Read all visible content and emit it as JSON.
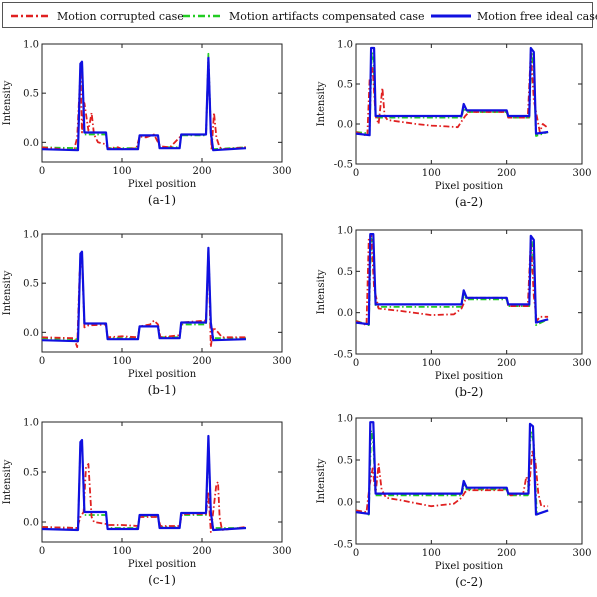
{
  "legend": {
    "corrupted": "Motion corrupted case",
    "compensated": "Motion artifacts compensated case",
    "ideal": "Motion free ideal case"
  },
  "colors": {
    "corrupted": "#e02020",
    "compensated": "#22cc22",
    "ideal": "#1010e0"
  },
  "chart_data": [
    {
      "id": "a-1",
      "type": "line",
      "subtitle": "(a-1)",
      "xlabel": "Pixel position",
      "ylabel": "Intensity",
      "xlim": [
        0,
        300
      ],
      "ylim": [
        -0.2,
        1.0
      ],
      "xticks": [
        0,
        100,
        200,
        300
      ],
      "yticks": [
        -0.0,
        0.5,
        1.0
      ],
      "ytick_labels": [
        "0.0",
        "0.5",
        "1.0"
      ],
      "series": [
        {
          "name": "Motion corrupted case",
          "style": "dashdot",
          "color": "#e02020",
          "x": [
            0,
            40,
            44,
            48,
            50,
            53,
            58,
            62,
            65,
            70,
            80,
            82,
            95,
            100,
            118,
            122,
            130,
            140,
            145,
            148,
            160,
            172,
            175,
            205,
            208,
            212,
            215,
            218,
            222,
            226,
            255
          ],
          "y": [
            -0.05,
            -0.08,
            0.05,
            0.72,
            0.1,
            0.4,
            0.12,
            0.3,
            0.08,
            0.0,
            -0.02,
            -0.06,
            -0.05,
            -0.07,
            -0.06,
            0.06,
            0.05,
            0.08,
            0.0,
            -0.04,
            -0.05,
            0.05,
            0.08,
            0.08,
            0.82,
            -0.08,
            0.3,
            0.05,
            -0.05,
            -0.07,
            -0.05
          ]
        },
        {
          "name": "Motion artifacts compensated case",
          "style": "dashdot",
          "color": "#22cc22",
          "x": [
            0,
            45,
            48,
            50,
            53,
            80,
            82,
            120,
            122,
            145,
            147,
            172,
            174,
            205,
            208,
            211,
            214,
            255
          ],
          "y": [
            -0.05,
            -0.06,
            0.75,
            0.82,
            0.08,
            0.08,
            -0.06,
            -0.06,
            0.07,
            0.07,
            -0.05,
            -0.05,
            0.07,
            0.07,
            0.9,
            0.12,
            -0.07,
            -0.05
          ]
        },
        {
          "name": "Motion free ideal case",
          "style": "solid",
          "color": "#1010e0",
          "x": [
            0,
            45,
            48,
            50,
            53,
            80,
            82,
            120,
            122,
            145,
            147,
            172,
            174,
            205,
            208,
            211,
            214,
            255
          ],
          "y": [
            -0.07,
            -0.08,
            0.8,
            0.82,
            0.1,
            0.1,
            -0.07,
            -0.07,
            0.07,
            0.07,
            -0.06,
            -0.06,
            0.08,
            0.08,
            0.86,
            0.1,
            -0.08,
            -0.06
          ]
        }
      ]
    },
    {
      "id": "a-2",
      "type": "line",
      "subtitle": "(a-2)",
      "xlabel": "Pixel position",
      "ylabel": "Intensity",
      "xlim": [
        0,
        300
      ],
      "ylim": [
        -0.5,
        1.0
      ],
      "xticks": [
        0,
        100,
        200,
        300
      ],
      "yticks": [
        -0.5,
        0.0,
        0.5,
        1.0
      ],
      "ytick_labels": [
        "-0.5",
        "0.0",
        "0.5",
        "1.0"
      ],
      "series": [
        {
          "name": "Motion corrupted case",
          "style": "dashdot",
          "color": "#e02020",
          "x": [
            0,
            15,
            18,
            22,
            26,
            30,
            35,
            38,
            42,
            80,
            100,
            120,
            135,
            145,
            150,
            200,
            202,
            228,
            232,
            236,
            240,
            244,
            248,
            255
          ],
          "y": [
            -0.1,
            -0.15,
            0.55,
            0.7,
            0.1,
            0.0,
            0.45,
            0.1,
            0.05,
            0.0,
            -0.02,
            -0.03,
            -0.04,
            0.1,
            0.15,
            0.15,
            0.08,
            0.08,
            0.9,
            0.3,
            0.1,
            -0.1,
            0.0,
            -0.05
          ]
        },
        {
          "name": "Motion artifacts compensated case",
          "style": "dashdot",
          "color": "#22cc22",
          "x": [
            0,
            18,
            21,
            23,
            26,
            140,
            143,
            147,
            200,
            202,
            230,
            233,
            236,
            239,
            255
          ],
          "y": [
            -0.1,
            -0.12,
            0.9,
            0.85,
            0.08,
            0.08,
            0.2,
            0.15,
            0.15,
            0.08,
            0.08,
            0.9,
            0.7,
            -0.15,
            -0.1
          ]
        },
        {
          "name": "Motion free ideal case",
          "style": "solid",
          "color": "#1010e0",
          "x": [
            0,
            18,
            20,
            24,
            26,
            140,
            143,
            147,
            200,
            202,
            230,
            232,
            236,
            239,
            255
          ],
          "y": [
            -0.12,
            -0.14,
            0.95,
            0.95,
            0.1,
            0.1,
            0.25,
            0.17,
            0.17,
            0.1,
            0.1,
            0.95,
            0.9,
            -0.12,
            -0.1
          ]
        }
      ]
    },
    {
      "id": "b-1",
      "type": "line",
      "subtitle": "(b-1)",
      "xlabel": "Pixel position",
      "ylabel": "Intensity",
      "xlim": [
        0,
        300
      ],
      "ylim": [
        -0.2,
        1.0
      ],
      "xticks": [
        0,
        100,
        200,
        300
      ],
      "yticks": [
        0.0,
        0.5,
        1.0
      ],
      "ytick_labels": [
        "0.0",
        "0.5",
        "1.0"
      ],
      "series": [
        {
          "name": "Motion corrupted case",
          "style": "dashdot",
          "color": "#e02020",
          "x": [
            0,
            40,
            44,
            47,
            50,
            53,
            58,
            80,
            82,
            100,
            120,
            122,
            135,
            140,
            145,
            148,
            172,
            175,
            205,
            208,
            211,
            214,
            220,
            225,
            255
          ],
          "y": [
            -0.05,
            -0.06,
            -0.15,
            0.6,
            0.78,
            0.05,
            0.07,
            0.08,
            -0.05,
            -0.04,
            -0.05,
            0.06,
            0.08,
            0.12,
            0.08,
            -0.05,
            -0.03,
            0.1,
            0.12,
            0.82,
            -0.15,
            0.05,
            0.0,
            -0.05,
            -0.05
          ]
        },
        {
          "name": "Motion artifacts compensated case",
          "style": "dashdot",
          "color": "#22cc22",
          "x": [
            0,
            45,
            48,
            50,
            53,
            80,
            82,
            120,
            122,
            145,
            147,
            172,
            174,
            205,
            208,
            211,
            214,
            255
          ],
          "y": [
            -0.06,
            -0.07,
            0.78,
            0.8,
            0.08,
            0.08,
            -0.06,
            -0.06,
            0.06,
            0.06,
            -0.05,
            -0.05,
            0.08,
            0.08,
            0.85,
            0.1,
            -0.06,
            -0.06
          ]
        },
        {
          "name": "Motion free ideal case",
          "style": "solid",
          "color": "#1010e0",
          "x": [
            0,
            45,
            48,
            50,
            53,
            80,
            82,
            120,
            122,
            145,
            147,
            172,
            174,
            205,
            208,
            211,
            214,
            255
          ],
          "y": [
            -0.08,
            -0.09,
            0.8,
            0.82,
            0.09,
            0.09,
            -0.07,
            -0.07,
            0.06,
            0.06,
            -0.06,
            -0.06,
            0.1,
            0.1,
            0.86,
            0.1,
            -0.08,
            -0.07
          ]
        }
      ]
    },
    {
      "id": "b-2",
      "type": "line",
      "subtitle": "(b-2)",
      "xlabel": "Pixel position",
      "ylabel": "Intensity",
      "xlim": [
        0,
        300
      ],
      "ylim": [
        -0.5,
        1.0
      ],
      "xticks": [
        0,
        100,
        200,
        300
      ],
      "yticks": [
        -0.5,
        0.0,
        0.5,
        1.0
      ],
      "ytick_labels": [
        "-0.5",
        "0.0",
        "0.5",
        "1.0"
      ],
      "series": [
        {
          "name": "Motion corrupted case",
          "style": "dashdot",
          "color": "#e02020",
          "x": [
            0,
            14,
            17,
            20,
            24,
            30,
            60,
            100,
            130,
            140,
            145,
            150,
            200,
            202,
            228,
            232,
            236,
            240,
            244,
            255
          ],
          "y": [
            -0.1,
            -0.15,
            0.9,
            0.95,
            0.3,
            0.05,
            0.02,
            -0.03,
            -0.02,
            0.05,
            0.15,
            0.18,
            0.18,
            0.08,
            0.08,
            0.88,
            0.2,
            -0.1,
            -0.05,
            -0.05
          ]
        },
        {
          "name": "Motion artifacts compensated case",
          "style": "dashdot",
          "color": "#22cc22",
          "x": [
            0,
            17,
            20,
            23,
            26,
            140,
            143,
            147,
            200,
            202,
            230,
            233,
            236,
            239,
            255
          ],
          "y": [
            -0.1,
            -0.15,
            0.9,
            0.85,
            0.07,
            0.07,
            0.22,
            0.16,
            0.16,
            0.08,
            0.08,
            0.9,
            0.6,
            -0.15,
            -0.08
          ]
        },
        {
          "name": "Motion free ideal case",
          "style": "solid",
          "color": "#1010e0",
          "x": [
            0,
            17,
            19,
            23,
            26,
            140,
            143,
            147,
            200,
            202,
            230,
            232,
            236,
            239,
            255
          ],
          "y": [
            -0.12,
            -0.14,
            0.95,
            0.95,
            0.1,
            0.1,
            0.27,
            0.18,
            0.18,
            0.1,
            0.1,
            0.93,
            0.88,
            -0.12,
            -0.08
          ]
        }
      ]
    },
    {
      "id": "c-1",
      "type": "line",
      "subtitle": "(c-1)",
      "xlabel": "Pixel position",
      "ylabel": "Intensity",
      "xlim": [
        0,
        300
      ],
      "ylim": [
        -0.2,
        1.0
      ],
      "xticks": [
        0,
        100,
        200,
        300
      ],
      "yticks": [
        0.0,
        0.5,
        1.0
      ],
      "ytick_labels": [
        "0.0",
        "0.5",
        "1.0"
      ],
      "series": [
        {
          "name": "Motion corrupted case",
          "style": "dashdot",
          "color": "#e02020",
          "x": [
            0,
            44,
            48,
            52,
            55,
            58,
            62,
            65,
            80,
            82,
            100,
            120,
            122,
            145,
            148,
            172,
            175,
            205,
            208,
            211,
            214,
            218,
            220,
            222,
            225,
            255
          ],
          "y": [
            -0.05,
            -0.06,
            0.05,
            0.1,
            0.55,
            0.58,
            0.05,
            0.0,
            -0.02,
            -0.03,
            -0.03,
            -0.04,
            0.05,
            0.05,
            -0.04,
            -0.04,
            0.08,
            0.08,
            0.3,
            -0.1,
            0.1,
            0.38,
            0.4,
            0.05,
            -0.08,
            -0.05
          ]
        },
        {
          "name": "Motion artifacts compensated case",
          "style": "dashdot",
          "color": "#22cc22",
          "x": [
            0,
            45,
            48,
            50,
            53,
            80,
            82,
            120,
            122,
            145,
            147,
            172,
            174,
            205,
            208,
            211,
            214,
            255
          ],
          "y": [
            -0.05,
            -0.06,
            0.78,
            0.8,
            0.07,
            0.07,
            -0.06,
            -0.06,
            0.06,
            0.06,
            -0.05,
            -0.05,
            0.07,
            0.07,
            0.82,
            0.1,
            -0.06,
            -0.06
          ]
        },
        {
          "name": "Motion free ideal case",
          "style": "solid",
          "color": "#1010e0",
          "x": [
            0,
            45,
            48,
            50,
            53,
            80,
            82,
            120,
            122,
            145,
            147,
            172,
            174,
            205,
            208,
            211,
            214,
            255
          ],
          "y": [
            -0.07,
            -0.08,
            0.8,
            0.82,
            0.1,
            0.1,
            -0.07,
            -0.07,
            0.07,
            0.07,
            -0.06,
            -0.06,
            0.09,
            0.09,
            0.86,
            0.1,
            -0.08,
            -0.06
          ]
        }
      ]
    },
    {
      "id": "c-2",
      "type": "line",
      "subtitle": "(c-2)",
      "xlabel": "Pixel position",
      "ylabel": "Intensity",
      "xlim": [
        0,
        300
      ],
      "ylim": [
        -0.5,
        1.0
      ],
      "xticks": [
        0,
        100,
        200,
        300
      ],
      "yticks": [
        -0.5,
        0.0,
        0.5,
        1.0
      ],
      "ytick_labels": [
        "-0.5",
        "0.0",
        "0.5",
        "1.0"
      ],
      "series": [
        {
          "name": "Motion corrupted case",
          "style": "dashdot",
          "color": "#e02020",
          "x": [
            0,
            14,
            18,
            22,
            26,
            30,
            34,
            40,
            60,
            100,
            130,
            140,
            145,
            150,
            200,
            205,
            222,
            226,
            230,
            234,
            238,
            242,
            246,
            255
          ],
          "y": [
            -0.1,
            -0.12,
            0.2,
            0.4,
            0.1,
            0.45,
            0.15,
            0.05,
            0.02,
            -0.05,
            -0.02,
            0.05,
            0.12,
            0.14,
            0.14,
            0.08,
            0.1,
            0.3,
            0.2,
            0.6,
            0.5,
            0.1,
            -0.05,
            -0.05
          ]
        },
        {
          "name": "Motion artifacts compensated case",
          "style": "dashdot",
          "color": "#22cc22",
          "x": [
            0,
            17,
            20,
            23,
            26,
            140,
            143,
            147,
            200,
            202,
            228,
            232,
            236,
            240,
            255
          ],
          "y": [
            -0.1,
            -0.15,
            0.85,
            0.7,
            0.08,
            0.08,
            0.2,
            0.15,
            0.15,
            0.08,
            0.08,
            0.85,
            0.7,
            -0.15,
            -0.1
          ]
        },
        {
          "name": "Motion free ideal case",
          "style": "solid",
          "color": "#1010e0",
          "x": [
            0,
            17,
            19,
            23,
            26,
            140,
            143,
            147,
            200,
            202,
            229,
            231,
            235,
            239,
            255
          ],
          "y": [
            -0.12,
            -0.14,
            0.95,
            0.95,
            0.1,
            0.1,
            0.25,
            0.17,
            0.17,
            0.1,
            0.1,
            0.93,
            0.9,
            -0.15,
            -0.1
          ]
        }
      ]
    }
  ]
}
